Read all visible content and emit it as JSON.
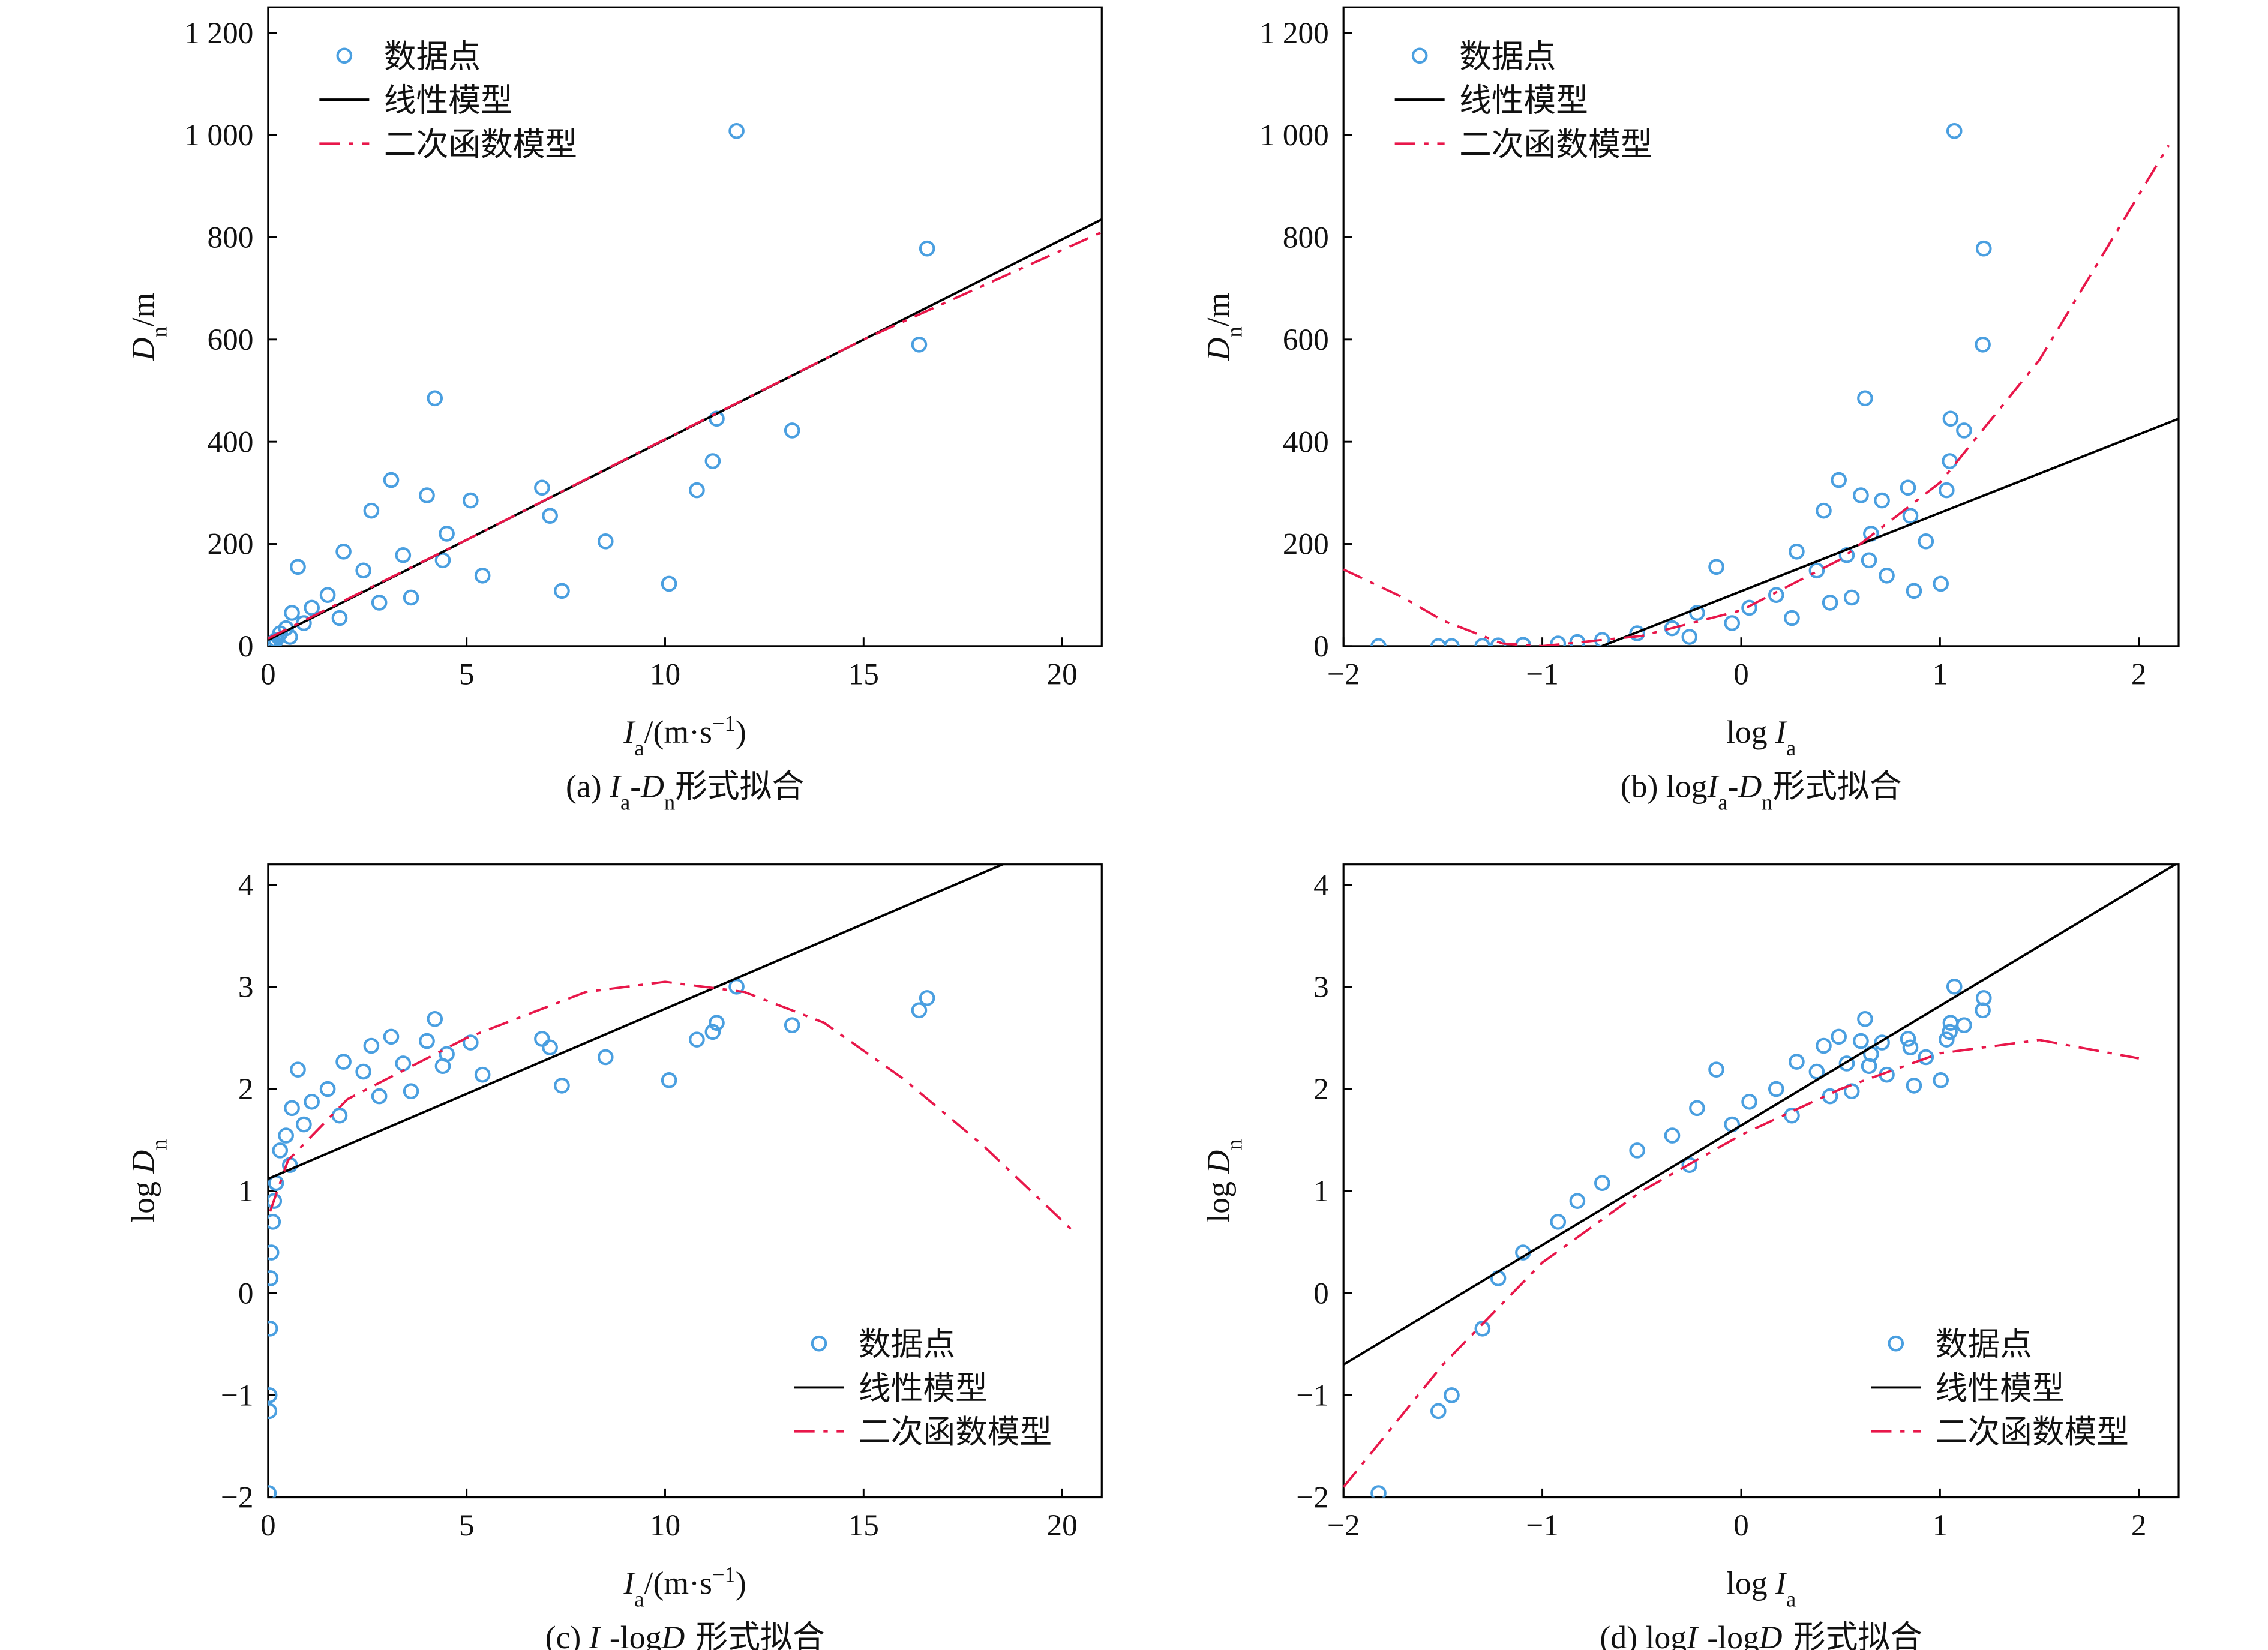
{
  "chart_data": [
    {
      "type": "scatter",
      "legend": "upper left",
      "xlabel": [
        {
          "text": "I",
          "style": "italic"
        },
        {
          "text": "a",
          "style": "sub"
        },
        {
          "text": "/(m·s"
        },
        {
          "text": "−1",
          "style": "sup"
        },
        {
          "text": ")"
        }
      ],
      "ylabel": [
        {
          "text": "D",
          "style": "italic"
        },
        {
          "text": "n",
          "style": "sub"
        },
        {
          "text": "/m"
        }
      ],
      "subtitle": [
        {
          "text": "(a) "
        },
        {
          "text": "I",
          "style": "italic"
        },
        {
          "text": "a",
          "style": "sub"
        },
        {
          "text": "-"
        },
        {
          "text": "D",
          "style": "italic"
        },
        {
          "text": "n",
          "style": "sub"
        },
        {
          "text": "形式拟合"
        }
      ],
      "xlim": [
        0,
        21
      ],
      "ylim": [
        0,
        1250
      ],
      "xticks": [
        0,
        5,
        10,
        15,
        20
      ],
      "yticks": [
        0,
        200,
        400,
        600,
        800,
        {
          "value": 1000,
          "label": "1 000"
        },
        {
          "value": 1200,
          "label": "1 200"
        }
      ],
      "series": [
        {
          "name": "数据点",
          "type": "scatter",
          "color": "#4a9fe0",
          "x": [
            11.8,
            16.6,
            16.4,
            4.2,
            11.3,
            13.2,
            11.2,
            3.1,
            6.9,
            10.8,
            4.0,
            5.1,
            2.6,
            7.1,
            4.5,
            8.5,
            1.9,
            3.4,
            4.4,
            0.75,
            2.4,
            5.4,
            10.1,
            7.4,
            1.5,
            3.6,
            2.8,
            1.1,
            0.6,
            1.8,
            0.9,
            0.45,
            0.3,
            0.55,
            0.2,
            0.15,
            0.12,
            0.08,
            0.06,
            0.05,
            0.035,
            0.03,
            0.015
          ],
          "values": [
            1008,
            778,
            590,
            485,
            445,
            422,
            362,
            325,
            310,
            305,
            295,
            285,
            265,
            255,
            220,
            205,
            185,
            178,
            168,
            155,
            148,
            138,
            122,
            108,
            100,
            95,
            85,
            75,
            65,
            55,
            45,
            35,
            25,
            18,
            12,
            8,
            5,
            2.5,
            1.4,
            0.45,
            0.1,
            0.07,
            0.011
          ]
        },
        {
          "name": "线性模型",
          "type": "line",
          "color": "#000000",
          "x": [
            0,
            21
          ],
          "values": [
            12,
            835
          ]
        },
        {
          "name": "二次函数模型",
          "type": "dashline",
          "color": "#e8174a",
          "x": [
            0,
            5,
            10,
            15,
            21
          ],
          "values": [
            15,
            208,
            405,
            600,
            810
          ]
        }
      ]
    },
    {
      "type": "scatter",
      "legend": "upper left",
      "xlabel": [
        {
          "text": "log "
        },
        {
          "text": "I",
          "style": "italic"
        },
        {
          "text": "a",
          "style": "sub"
        }
      ],
      "ylabel": [
        {
          "text": "D",
          "style": "italic"
        },
        {
          "text": "n",
          "style": "sub"
        },
        {
          "text": "/m"
        }
      ],
      "subtitle": [
        {
          "text": "(b) log"
        },
        {
          "text": "I",
          "style": "italic"
        },
        {
          "text": "a",
          "style": "sub"
        },
        {
          "text": "-"
        },
        {
          "text": "D",
          "style": "italic"
        },
        {
          "text": "n",
          "style": "sub"
        },
        {
          "text": "形式拟合"
        }
      ],
      "xlim": [
        -2,
        2.2
      ],
      "ylim": [
        0,
        1250
      ],
      "xticks": [
        {
          "value": -2,
          "label": "−2"
        },
        {
          "value": -1,
          "label": "−1"
        },
        0,
        1,
        2
      ],
      "yticks": [
        0,
        200,
        400,
        600,
        800,
        {
          "value": 1000,
          "label": "1 000"
        },
        {
          "value": 1200,
          "label": "1 200"
        }
      ],
      "series": [
        {
          "name": "数据点",
          "type": "scatter",
          "color": "#4a9fe0",
          "x": [
            1.072,
            1.22,
            1.215,
            0.623,
            1.053,
            1.121,
            1.049,
            0.491,
            0.839,
            1.033,
            0.602,
            0.708,
            0.415,
            0.851,
            0.653,
            0.929,
            0.279,
            0.531,
            0.643,
            -0.125,
            0.38,
            0.732,
            1.004,
            0.869,
            0.176,
            0.556,
            0.447,
            0.041,
            -0.222,
            0.255,
            -0.046,
            -0.347,
            -0.523,
            -0.26,
            -0.699,
            -0.824,
            -0.921,
            -1.097,
            -1.222,
            -1.301,
            -1.456,
            -1.523,
            -1.824
          ],
          "values": [
            1008,
            778,
            590,
            485,
            445,
            422,
            362,
            325,
            310,
            305,
            295,
            285,
            265,
            255,
            220,
            205,
            185,
            178,
            168,
            155,
            148,
            138,
            122,
            108,
            100,
            95,
            85,
            75,
            65,
            55,
            45,
            35,
            25,
            18,
            12,
            8,
            5,
            2.5,
            1.4,
            0.45,
            0.1,
            0.07,
            0.011
          ]
        },
        {
          "name": "线性模型",
          "type": "line",
          "color": "#000000",
          "x": [
            -0.7,
            2.2
          ],
          "values": [
            0,
            445
          ]
        },
        {
          "name": "二次函数模型",
          "type": "dashline",
          "color": "#e8174a",
          "x": [
            -2,
            -1.7,
            -1.5,
            -1.2,
            -1,
            -0.5,
            0,
            0.5,
            1,
            1.5,
            2.15
          ],
          "values": [
            150,
            95,
            50,
            5,
            0,
            20,
            70,
            170,
            320,
            560,
            980
          ]
        }
      ]
    },
    {
      "type": "scatter",
      "legend": "lower right",
      "xlabel": [
        {
          "text": "I",
          "style": "italic"
        },
        {
          "text": "a",
          "style": "sub"
        },
        {
          "text": "/(m·s"
        },
        {
          "text": "−1",
          "style": "sup"
        },
        {
          "text": ")"
        }
      ],
      "ylabel": [
        {
          "text": "log "
        },
        {
          "text": "D",
          "style": "italic"
        },
        {
          "text": "n",
          "style": "sub"
        }
      ],
      "subtitle": [
        {
          "text": "(c) "
        },
        {
          "text": "I",
          "style": "italic"
        },
        {
          "text": "a",
          "style": "sub"
        },
        {
          "text": "-log"
        },
        {
          "text": "D",
          "style": "italic"
        },
        {
          "text": "n",
          "style": "sub"
        },
        {
          "text": "形式拟合"
        }
      ],
      "xlim": [
        0,
        21
      ],
      "ylim": [
        -2,
        4.2
      ],
      "xticks": [
        0,
        5,
        10,
        15,
        20
      ],
      "yticks": [
        {
          "value": -2,
          "label": "−2"
        },
        {
          "value": -1,
          "label": "−1"
        },
        0,
        1,
        2,
        3,
        4
      ],
      "series": [
        {
          "name": "数据点",
          "type": "scatter",
          "color": "#4a9fe0",
          "x": [
            11.8,
            16.6,
            16.4,
            4.2,
            11.3,
            13.2,
            11.2,
            3.1,
            6.9,
            10.8,
            4.0,
            5.1,
            2.6,
            7.1,
            4.5,
            8.5,
            1.9,
            3.4,
            4.4,
            0.75,
            2.4,
            5.4,
            10.1,
            7.4,
            1.5,
            3.6,
            2.8,
            1.1,
            0.6,
            1.8,
            0.9,
            0.45,
            0.3,
            0.55,
            0.2,
            0.15,
            0.12,
            0.08,
            0.06,
            0.05,
            0.035,
            0.03,
            0.015
          ],
          "values": [
            3.003,
            2.891,
            2.771,
            2.686,
            2.648,
            2.625,
            2.559,
            2.512,
            2.491,
            2.484,
            2.47,
            2.455,
            2.423,
            2.407,
            2.342,
            2.312,
            2.267,
            2.25,
            2.225,
            2.19,
            2.17,
            2.14,
            2.086,
            2.033,
            2.0,
            1.978,
            1.929,
            1.875,
            1.813,
            1.74,
            1.653,
            1.544,
            1.398,
            1.255,
            1.079,
            0.903,
            0.699,
            0.398,
            0.146,
            -0.347,
            -1.0,
            -1.155,
            -1.959
          ]
        },
        {
          "name": "线性模型",
          "type": "line",
          "color": "#000000",
          "x": [
            0,
            19.1
          ],
          "values": [
            1.12,
            4.3
          ]
        },
        {
          "name": "二次函数模型",
          "type": "dashline",
          "color": "#e8174a",
          "x": [
            0.05,
            0.5,
            2,
            5,
            8,
            10,
            12,
            14,
            16,
            18,
            20.3
          ],
          "values": [
            0.8,
            1.3,
            1.9,
            2.5,
            2.95,
            3.05,
            2.95,
            2.65,
            2.1,
            1.45,
            0.6
          ]
        }
      ]
    },
    {
      "type": "scatter",
      "legend": "lower right",
      "xlabel": [
        {
          "text": "log "
        },
        {
          "text": "I",
          "style": "italic"
        },
        {
          "text": "a",
          "style": "sub"
        }
      ],
      "ylabel": [
        {
          "text": "log "
        },
        {
          "text": "D",
          "style": "italic"
        },
        {
          "text": "n",
          "style": "sub"
        }
      ],
      "subtitle": [
        {
          "text": "(d) log"
        },
        {
          "text": "I",
          "style": "italic"
        },
        {
          "text": "a",
          "style": "sub"
        },
        {
          "text": "-log"
        },
        {
          "text": "D",
          "style": "italic"
        },
        {
          "text": "n",
          "style": "sub"
        },
        {
          "text": "形式拟合"
        }
      ],
      "xlim": [
        -2,
        2.2
      ],
      "ylim": [
        -2,
        4.2
      ],
      "xticks": [
        {
          "value": -2,
          "label": "−2"
        },
        {
          "value": -1,
          "label": "−1"
        },
        0,
        1,
        2
      ],
      "yticks": [
        {
          "value": -2,
          "label": "−2"
        },
        {
          "value": -1,
          "label": "−1"
        },
        0,
        1,
        2,
        3,
        4
      ],
      "series": [
        {
          "name": "数据点",
          "type": "scatter",
          "color": "#4a9fe0",
          "x": [
            1.072,
            1.22,
            1.215,
            0.623,
            1.053,
            1.121,
            1.049,
            0.491,
            0.839,
            1.033,
            0.602,
            0.708,
            0.415,
            0.851,
            0.653,
            0.929,
            0.279,
            0.531,
            0.643,
            -0.125,
            0.38,
            0.732,
            1.004,
            0.869,
            0.176,
            0.556,
            0.447,
            0.041,
            -0.222,
            0.255,
            -0.046,
            -0.347,
            -0.523,
            -0.26,
            -0.699,
            -0.824,
            -0.921,
            -1.097,
            -1.222,
            -1.301,
            -1.456,
            -1.523,
            -1.824
          ],
          "values": [
            3.003,
            2.891,
            2.771,
            2.686,
            2.648,
            2.625,
            2.559,
            2.512,
            2.491,
            2.484,
            2.47,
            2.455,
            2.423,
            2.407,
            2.342,
            2.312,
            2.267,
            2.25,
            2.225,
            2.19,
            2.17,
            2.14,
            2.086,
            2.033,
            2.0,
            1.978,
            1.929,
            1.875,
            1.813,
            1.74,
            1.653,
            1.544,
            1.398,
            1.255,
            1.079,
            0.903,
            0.699,
            0.398,
            0.146,
            -0.347,
            -1.0,
            -1.155,
            -1.959
          ]
        },
        {
          "name": "线性模型",
          "type": "line",
          "color": "#000000",
          "x": [
            -2,
            2.2
          ],
          "values": [
            -0.7,
            4.22
          ]
        },
        {
          "name": "二次函数模型",
          "type": "dashline",
          "color": "#e8174a",
          "x": [
            -2,
            -1.5,
            -1,
            -0.5,
            0,
            0.5,
            1,
            1.5,
            2
          ],
          "values": [
            -1.9,
            -0.7,
            0.3,
            1.0,
            1.55,
            2.0,
            2.35,
            2.48,
            2.3
          ]
        }
      ]
    }
  ]
}
